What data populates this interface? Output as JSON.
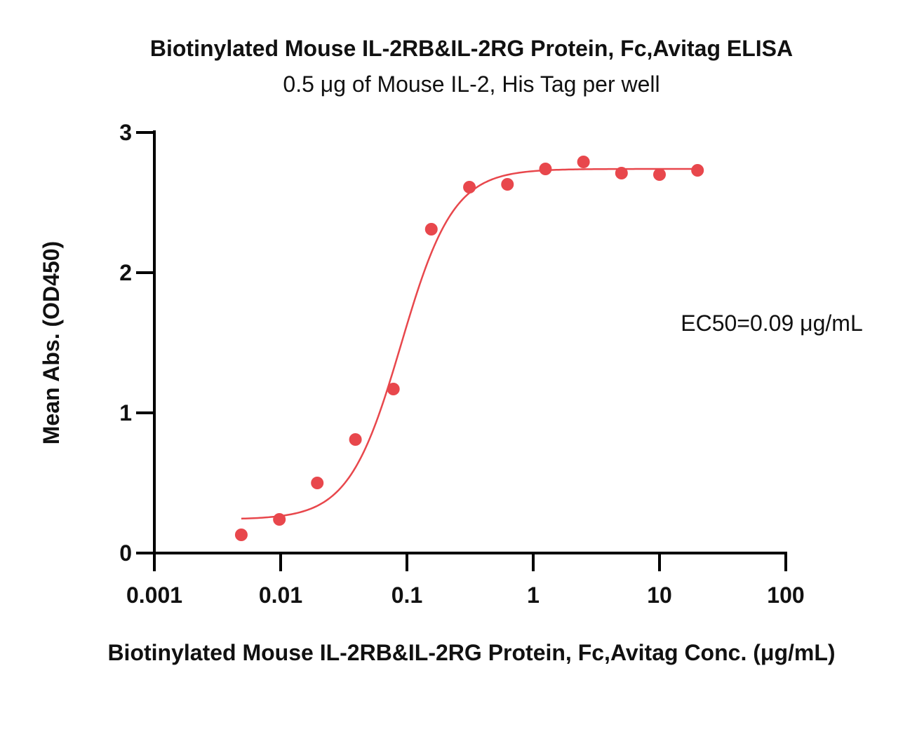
{
  "chart_data": {
    "type": "scatter",
    "title": "Biotinylated Mouse IL-2RB&IL-2RG Protein, Fc,Avitag ELISA",
    "subtitle": "0.5 μg of Mouse IL-2, His Tag per well",
    "xlabel": "Biotinylated Mouse IL-2RB&IL-2RG Protein, Fc,Avitag Conc. (μg/mL)",
    "ylabel": "Mean Abs. (OD450)",
    "xscale": "log",
    "xlim": [
      0.001,
      100
    ],
    "ylim": [
      0,
      3
    ],
    "xticks": [
      0.001,
      0.01,
      0.1,
      1,
      10,
      100
    ],
    "xtick_labels": [
      "0.001",
      "0.01",
      "0.1",
      "1",
      "10",
      "100"
    ],
    "yticks": [
      0,
      1,
      2,
      3
    ],
    "ytick_labels": [
      "0",
      "1",
      "2",
      "3"
    ],
    "grid": false,
    "color": "#E8474C",
    "annotation": "EC50=0.09 μg/mL",
    "series": [
      {
        "points": [
          {
            "x": 0.00488,
            "y": 0.13
          },
          {
            "x": 0.00977,
            "y": 0.24
          },
          {
            "x": 0.0195,
            "y": 0.5
          },
          {
            "x": 0.0391,
            "y": 0.81
          },
          {
            "x": 0.0781,
            "y": 1.17
          },
          {
            "x": 0.156,
            "y": 2.31
          },
          {
            "x": 0.3125,
            "y": 2.61
          },
          {
            "x": 0.625,
            "y": 2.63
          },
          {
            "x": 1.25,
            "y": 2.74
          },
          {
            "x": 2.5,
            "y": 2.79
          },
          {
            "x": 5,
            "y": 2.71
          },
          {
            "x": 10,
            "y": 2.7
          },
          {
            "x": 20,
            "y": 2.73
          }
        ]
      }
    ],
    "fit_curve": {
      "model": "4PL",
      "bottom": 0.24,
      "top": 2.74,
      "ec50": 0.09,
      "hill": 2.1,
      "x_range": [
        0.00488,
        20
      ]
    }
  }
}
